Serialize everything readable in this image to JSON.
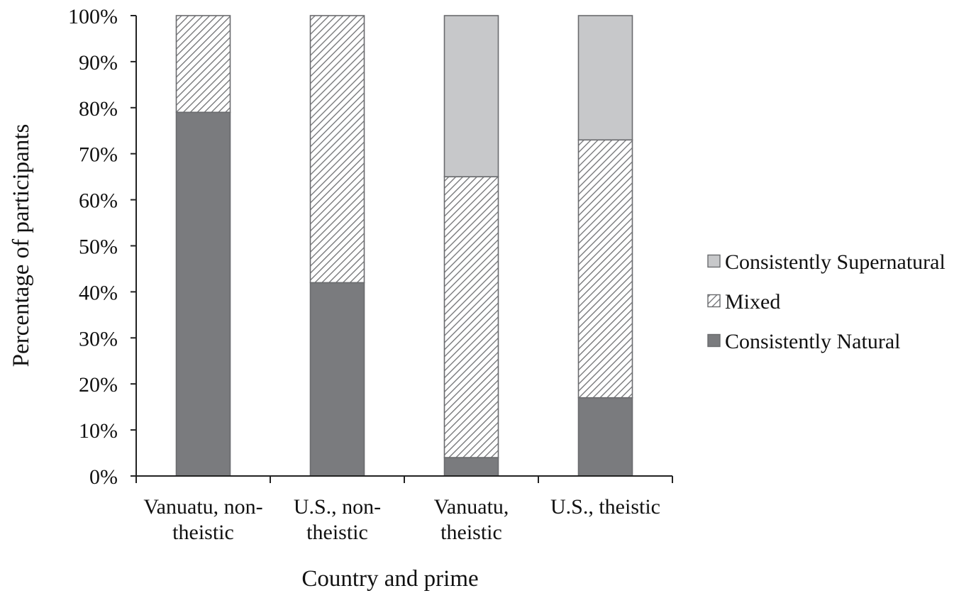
{
  "chart_data": {
    "type": "bar",
    "stacked": true,
    "title": "",
    "xlabel": "Country and prime",
    "ylabel": "Percentage of participants",
    "ylim": [
      0,
      100
    ],
    "y_ticks": [
      "0%",
      "10%",
      "20%",
      "30%",
      "40%",
      "50%",
      "60%",
      "70%",
      "80%",
      "90%",
      "100%"
    ],
    "categories": [
      [
        "Vanuatu, non-",
        "theistic"
      ],
      [
        "U.S., non-",
        "theistic"
      ],
      [
        "Vanuatu,",
        "theistic"
      ],
      [
        "U.S., theistic"
      ]
    ],
    "series": [
      {
        "name": "Consistently Natural",
        "values": [
          79,
          42,
          4,
          17
        ],
        "color": "#7a7b7e",
        "pattern": "solid"
      },
      {
        "name": "Mixed",
        "values": [
          21,
          58,
          61,
          56
        ],
        "color": "#ffffff",
        "pattern": "diagonal-hatch"
      },
      {
        "name": "Consistently Supernatural",
        "values": [
          0,
          0,
          35,
          27
        ],
        "color": "#c7c8ca",
        "pattern": "solid"
      }
    ],
    "legend": {
      "position": "right",
      "order": [
        "Consistently Supernatural",
        "Mixed",
        "Consistently Natural"
      ]
    },
    "grid": false
  }
}
